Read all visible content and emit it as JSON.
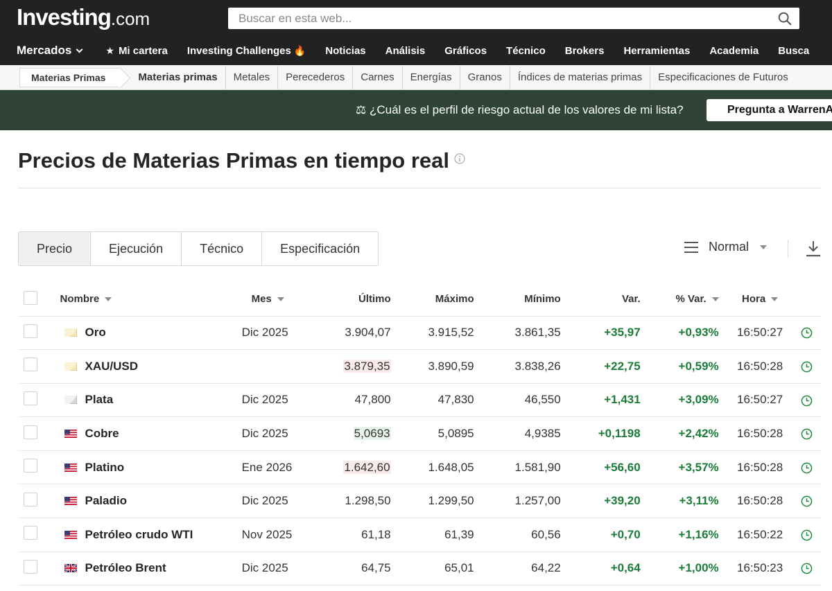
{
  "header": {
    "logo_main": "Investing",
    "logo_suffix": ".com",
    "search_placeholder": "Buscar en esta web...",
    "nav": [
      "Mercados",
      "Mi cartera",
      "Investing Challenges",
      "Noticias",
      "Análisis",
      "Gráficos",
      "Técnico",
      "Brokers",
      "Herramientas",
      "Academia",
      "Busca"
    ]
  },
  "subnav": {
    "breadcrumb": "Materias Primas",
    "items": [
      "Materias primas",
      "Metales",
      "Perecederos",
      "Carnes",
      "Energías",
      "Granos",
      "Índices de materias primas",
      "Especificaciones de Futuros"
    ]
  },
  "promo": {
    "text": "⚖ ¿Cuál es el perfil de riesgo actual de los valores de mi lista?",
    "button": "Pregunta a WarrenA"
  },
  "page": {
    "title": "Precios de Materias Primas en tiempo real"
  },
  "tabs": [
    "Precio",
    "Ejecución",
    "Técnico",
    "Especificación"
  ],
  "view": {
    "label": "Normal"
  },
  "table": {
    "columns": {
      "nombre": "Nombre",
      "mes": "Mes",
      "ultimo": "Último",
      "maximo": "Máximo",
      "minimo": "Mínimo",
      "var": "Var.",
      "pct": "% Var.",
      "hora": "Hora"
    },
    "rows": [
      {
        "name": "Oro",
        "flag": "gold",
        "mes": "Dic 2025",
        "ultimo": "3.904,07",
        "maximo": "3.915,52",
        "minimo": "3.861,35",
        "var": "+35,97",
        "pct": "+0,93%",
        "hora": "16:50:27"
      },
      {
        "name": "XAU/USD",
        "flag": "gold",
        "mes": "",
        "ultimo": "3.879,35",
        "maximo": "3.890,59",
        "minimo": "3.838,26",
        "var": "+22,75",
        "pct": "+0,59%",
        "hora": "16:50:28"
      },
      {
        "name": "Plata",
        "flag": "silver",
        "mes": "Dic 2025",
        "ultimo": "47,800",
        "maximo": "47,830",
        "minimo": "46,550",
        "var": "+1,431",
        "pct": "+3,09%",
        "hora": "16:50:27"
      },
      {
        "name": "Cobre",
        "flag": "us",
        "mes": "Dic 2025",
        "ultimo": "5,0693",
        "maximo": "5,0895",
        "minimo": "4,9385",
        "var": "+0,1198",
        "pct": "+2,42%",
        "hora": "16:50:28"
      },
      {
        "name": "Platino",
        "flag": "us",
        "mes": "Ene 2026",
        "ultimo": "1.642,60",
        "maximo": "1.648,05",
        "minimo": "1.581,90",
        "var": "+56,60",
        "pct": "+3,57%",
        "hora": "16:50:28"
      },
      {
        "name": "Paladio",
        "flag": "us",
        "mes": "Dic 2025",
        "ultimo": "1.298,50",
        "maximo": "1.299,50",
        "minimo": "1.257,00",
        "var": "+39,20",
        "pct": "+3,11%",
        "hora": "16:50:28"
      },
      {
        "name": "Petróleo crudo WTI",
        "flag": "us",
        "mes": "Nov 2025",
        "ultimo": "61,18",
        "maximo": "61,39",
        "minimo": "60,56",
        "var": "+0,70",
        "pct": "+1,16%",
        "hora": "16:50:22"
      },
      {
        "name": "Petróleo Brent",
        "flag": "uk",
        "mes": "Dic 2025",
        "ultimo": "64,75",
        "maximo": "65,01",
        "minimo": "64,22",
        "var": "+0,64",
        "pct": "+1,00%",
        "hora": "16:50:23"
      }
    ]
  },
  "colors": {
    "header_bg": "#222222",
    "promo_bg": "#2f4437",
    "positive": "#1b7c38",
    "highlight_red": "#fbeaea",
    "highlight_green": "#e8f4ea"
  }
}
